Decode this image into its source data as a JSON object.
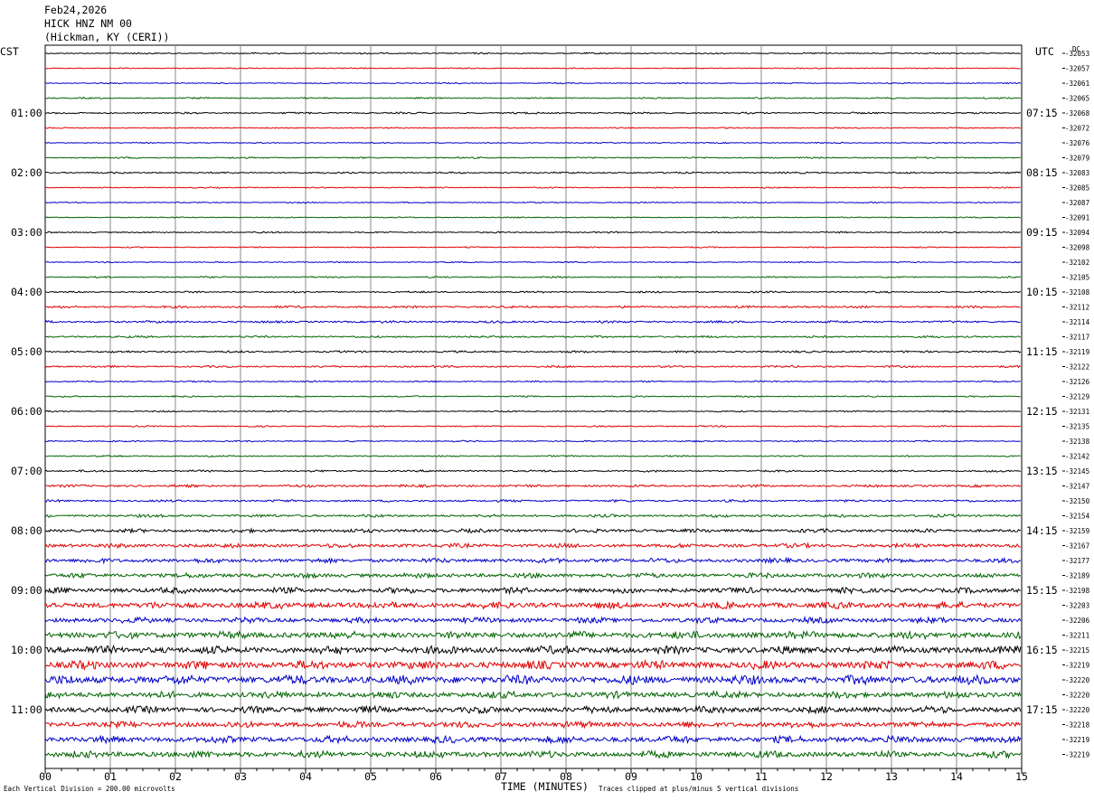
{
  "header": {
    "date": "Feb24,2026",
    "station": "HICK HNZ NM 00",
    "location": "(Hickman, KY (CERI))"
  },
  "labels": {
    "left_tz": "CST",
    "right_tz": "UTC",
    "dc_title": "DC"
  },
  "footer": {
    "division": "Each Vertical Division =  200.00 microvolts",
    "xlabel": "TIME (MINUTES)",
    "clip": "Traces clipped at plus/minus 5 vertical divisions"
  },
  "colors": {
    "trace_cycle": [
      "#000000",
      "#e00000",
      "#0000c8",
      "#006400"
    ],
    "grid": "#8a8a8a"
  },
  "chart_data": {
    "type": "line",
    "x_ticks": [
      "00",
      "01",
      "02",
      "03",
      "04",
      "05",
      "06",
      "07",
      "08",
      "09",
      "10",
      "11",
      "12",
      "13",
      "14",
      "15"
    ],
    "xlim": [
      0,
      15
    ],
    "hour_labels_left": [
      "01:00",
      "02:00",
      "03:00",
      "04:00",
      "05:00",
      "06:00",
      "07:00",
      "08:00",
      "09:00",
      "10:00",
      "11:00"
    ],
    "hour_labels_right": [
      "07:15",
      "08:15",
      "09:15",
      "10:15",
      "11:15",
      "12:15",
      "13:15",
      "14:15",
      "15:15",
      "16:15",
      "17:15"
    ],
    "dc_offsets": [
      "-32053",
      "-32057",
      "-32061",
      "-32065",
      "-32068",
      "-32072",
      "-32076",
      "-32079",
      "-32083",
      "-32085",
      "-32087",
      "-32091",
      "-32094",
      "-32098",
      "-32102",
      "-32105",
      "-32108",
      "-32112",
      "-32114",
      "-32117",
      "-32119",
      "-32122",
      "-32126",
      "-32129",
      "-32131",
      "-32135",
      "-32138",
      "-32142",
      "-32145",
      "-32147",
      "-32150",
      "-32154",
      "-32159",
      "-32167",
      "-32177",
      "-32189",
      "-32198",
      "-32203",
      "-32206",
      "-32211",
      "-32215",
      "-32219",
      "-32220",
      "-32220",
      "-32220",
      "-32218",
      "-32219",
      "-32219"
    ],
    "activity": [
      0.5,
      0.4,
      0.4,
      0.5,
      0.6,
      0.4,
      0.4,
      0.5,
      0.6,
      0.4,
      0.4,
      0.4,
      0.5,
      0.4,
      0.4,
      0.5,
      0.6,
      0.8,
      0.8,
      0.7,
      0.7,
      0.7,
      0.5,
      0.5,
      0.5,
      0.5,
      0.5,
      0.5,
      0.7,
      0.9,
      0.8,
      1.0,
      1.3,
      1.5,
      1.6,
      1.7,
      2.0,
      2.4,
      2.0,
      2.6,
      2.8,
      3.0,
      3.2,
      2.4,
      2.4,
      2.2,
      2.4,
      2.4
    ]
  }
}
